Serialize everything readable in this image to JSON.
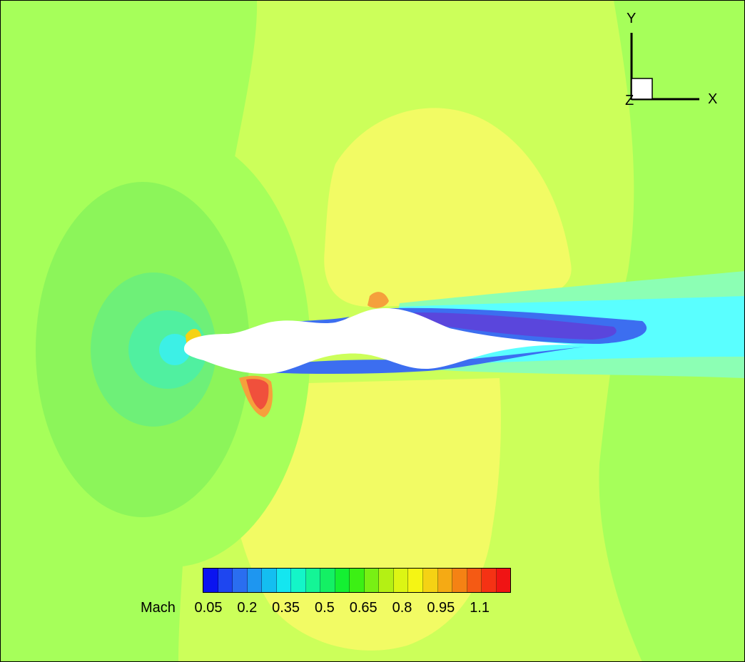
{
  "legend": {
    "title": "Mach",
    "ticks": [
      "0.05",
      "0.2",
      "0.35",
      "0.5",
      "0.65",
      "0.8",
      "0.95",
      "1.1"
    ],
    "colors": [
      "#0a14f0",
      "#1e46f0",
      "#2a6ef0",
      "#1e96f0",
      "#14bef0",
      "#14e6f0",
      "#14f5c8",
      "#14f596",
      "#14f064",
      "#14f032",
      "#3cf014",
      "#78f014",
      "#b4f014",
      "#dcf514",
      "#f5f514",
      "#f5d214",
      "#f5aa14",
      "#f58214",
      "#f55a14",
      "#f53214",
      "#f01414"
    ]
  },
  "axes": {
    "y_label": "Y",
    "x_label": "X",
    "z_label": "Z"
  },
  "colors": {
    "far_field": "#ccff5a",
    "green_zone": "#a6ff5a",
    "yellow_zone": "#f2fb64",
    "stagnation_outer": "#8cf55a",
    "stagnation_mid": "#6ef078",
    "stagnation_inner": "#50f0a0",
    "stagnation_core": "#3cf0e6",
    "wake_cyan": "#5affff",
    "wake_light": "#8cffb4",
    "wake_blue": "#3c6ef0",
    "wake_dark": "#5a46dc",
    "hot_orange": "#f5a03c",
    "hot_red": "#f0503c",
    "body": "#ffffff"
  }
}
